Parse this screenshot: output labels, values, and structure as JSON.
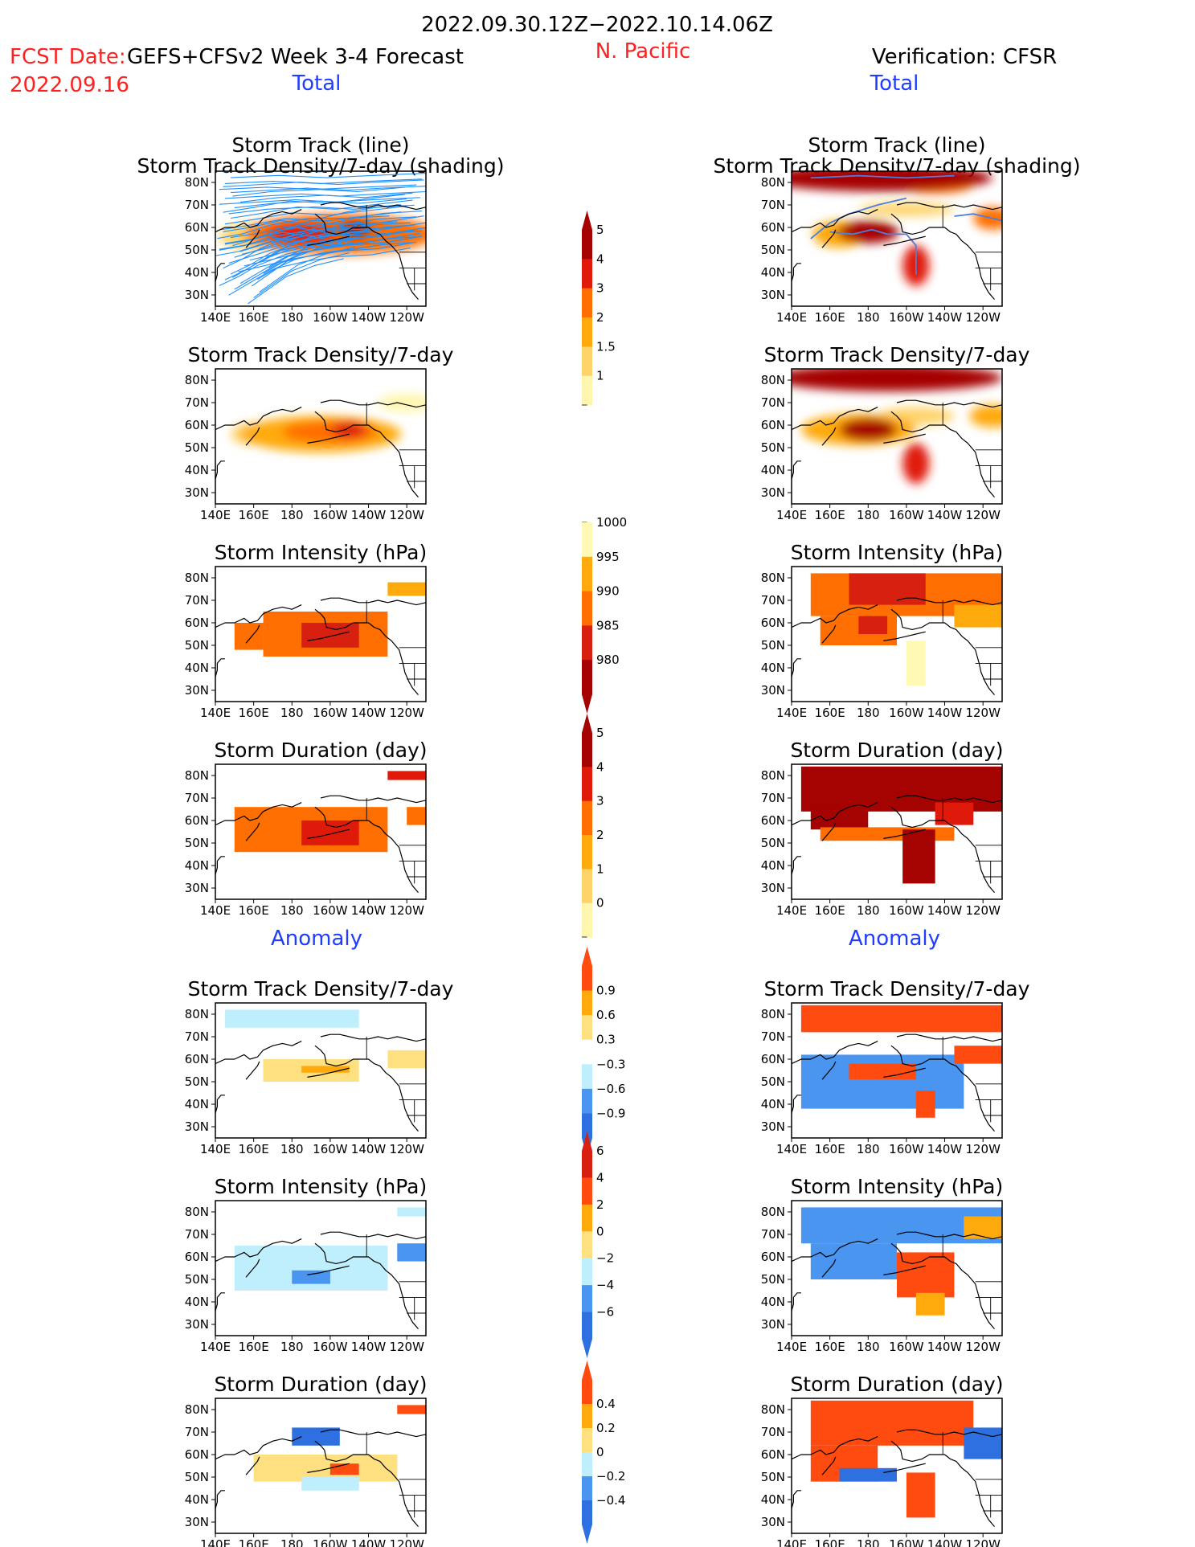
{
  "header": {
    "period": "2022.09.30.12Z−2022.10.14.06Z",
    "fcst_label": "FCST Date:",
    "fcst_model": "GEFS+CFSv2 Week 3-4 Forecast",
    "fcst_date": "2022.09.16",
    "region": "N. Pacific",
    "verification": "Verification: CFSR",
    "total_left": "Total",
    "total_right": "Total",
    "anomaly_left": "Anomaly",
    "anomaly_right": "Anomaly"
  },
  "colors": {
    "text_red": "#ff2020",
    "text_blue": "#1f3cff",
    "track_line": "#1e90ff",
    "track_line_obs": "#4a7fe0"
  },
  "axes": {
    "x_ticks": [
      "140E",
      "160E",
      "180",
      "160W",
      "140W",
      "120W"
    ],
    "y_ticks": [
      "80N",
      "70N",
      "60N",
      "50N",
      "40N",
      "30N"
    ],
    "lon_range": [
      140,
      250
    ],
    "lat_range": [
      25,
      85
    ]
  },
  "colorbars": [
    {
      "id": "density_total",
      "palette": "warm",
      "labels": [
        "5",
        "4",
        "3",
        "2",
        "1.5",
        "1"
      ],
      "triangle_top": true,
      "triangle_bottom": false
    },
    {
      "id": "intensity_total",
      "palette": "warm_rev",
      "labels": [
        "1000",
        "995",
        "990",
        "985",
        "980"
      ],
      "triangle_top": false,
      "triangle_bottom": true
    },
    {
      "id": "duration_total",
      "palette": "warm",
      "labels": [
        "5",
        "4",
        "3",
        "2",
        "1",
        "0"
      ],
      "triangle_top": true,
      "triangle_bottom": false
    },
    {
      "id": "density_anom",
      "palette": "div",
      "labels": [
        "0.9",
        "0.6",
        "0.3",
        "−0.3",
        "−0.6",
        "−0.9"
      ],
      "triangle_top": true,
      "triangle_bottom": true
    },
    {
      "id": "intensity_anom",
      "palette": "div",
      "labels": [
        "6",
        "4",
        "2",
        "0",
        "−2",
        "−4",
        "−6"
      ],
      "triangle_top": true,
      "triangle_bottom": true
    },
    {
      "id": "duration_anom",
      "palette": "div",
      "labels": [
        "0.4",
        "0.2",
        "0",
        "−0.2",
        "−0.4"
      ],
      "triangle_top": true,
      "triangle_bottom": true
    }
  ],
  "chart_data": [
    {
      "type": "heatmap",
      "id": "fcst_track",
      "title": "Storm Track (line)",
      "subtitle": "Storm Track Density/7-day (shading)",
      "units": "storms/7-day",
      "lines": true,
      "blobs": [
        {
          "lon": 205,
          "lat": 57,
          "rx": 50,
          "ry": 9,
          "val": 3
        },
        {
          "lon": 185,
          "lat": 57,
          "rx": 18,
          "ry": 5,
          "val": 4
        },
        {
          "lon": 213,
          "lat": 59,
          "rx": 8,
          "ry": 4,
          "val": 5
        },
        {
          "lon": 160,
          "lat": 56,
          "rx": 18,
          "ry": 6,
          "val": 1.5
        }
      ]
    },
    {
      "type": "heatmap",
      "id": "obs_track",
      "title": "Storm Track (line)",
      "subtitle": "Storm Track Density/7-day (shading)",
      "units": "storms/7-day",
      "lines": true,
      "blobs": [
        {
          "lon": 185,
          "lat": 82,
          "rx": 60,
          "ry": 6,
          "val": 5
        },
        {
          "lon": 215,
          "lat": 79,
          "rx": 20,
          "ry": 4,
          "val": 3
        },
        {
          "lon": 180,
          "lat": 58,
          "rx": 16,
          "ry": 5,
          "val": 5
        },
        {
          "lon": 165,
          "lat": 57,
          "rx": 14,
          "ry": 6,
          "val": 2
        },
        {
          "lon": 205,
          "lat": 43,
          "rx": 7,
          "ry": 9,
          "val": 4
        },
        {
          "lon": 245,
          "lat": 64,
          "rx": 10,
          "ry": 5,
          "val": 3
        },
        {
          "lon": 200,
          "lat": 68,
          "rx": 25,
          "ry": 3,
          "val": 1.5
        }
      ]
    },
    {
      "type": "heatmap",
      "id": "fcst_density",
      "title": "Storm Track Density/7-day",
      "units": "storms/7-day",
      "blobs": [
        {
          "lon": 195,
          "lat": 56,
          "rx": 42,
          "ry": 8,
          "val": 2
        },
        {
          "lon": 200,
          "lat": 57,
          "rx": 25,
          "ry": 5,
          "val": 3
        },
        {
          "lon": 210,
          "lat": 58,
          "rx": 9,
          "ry": 4,
          "val": 4
        },
        {
          "lon": 160,
          "lat": 56,
          "rx": 12,
          "ry": 5,
          "val": 1.5
        },
        {
          "lon": 240,
          "lat": 70,
          "rx": 15,
          "ry": 4,
          "val": 1
        }
      ]
    },
    {
      "type": "heatmap",
      "id": "obs_density",
      "title": "Storm Track Density/7-day",
      "units": "storms/7-day",
      "blobs": [
        {
          "lon": 190,
          "lat": 81,
          "rx": 60,
          "ry": 6,
          "val": 5
        },
        {
          "lon": 180,
          "lat": 58,
          "rx": 15,
          "ry": 5,
          "val": 5
        },
        {
          "lon": 175,
          "lat": 58,
          "rx": 30,
          "ry": 7,
          "val": 2
        },
        {
          "lon": 205,
          "lat": 43,
          "rx": 7,
          "ry": 9,
          "val": 4
        },
        {
          "lon": 245,
          "lat": 64,
          "rx": 12,
          "ry": 5,
          "val": 2
        },
        {
          "lon": 205,
          "lat": 64,
          "rx": 20,
          "ry": 4,
          "val": 1.5
        }
      ]
    },
    {
      "type": "heatmap",
      "id": "fcst_intensity",
      "title": "Storm Intensity (hPa)",
      "units": "hPa",
      "grid": true,
      "boxes": [
        {
          "lon": [
            165,
            230
          ],
          "lat": [
            45,
            65
          ],
          "val": 990
        },
        {
          "lon": [
            185,
            215
          ],
          "lat": [
            49,
            60
          ],
          "val": 985
        },
        {
          "lon": [
            230,
            250
          ],
          "lat": [
            72,
            78
          ],
          "val": 995
        },
        {
          "lon": [
            150,
            165
          ],
          "lat": [
            48,
            60
          ],
          "val": 990
        }
      ]
    },
    {
      "type": "heatmap",
      "id": "obs_intensity",
      "title": "Storm Intensity (hPa)",
      "units": "hPa",
      "grid": true,
      "boxes": [
        {
          "lon": [
            150,
            250
          ],
          "lat": [
            63,
            82
          ],
          "val": 990
        },
        {
          "lon": [
            170,
            210
          ],
          "lat": [
            68,
            82
          ],
          "val": 985
        },
        {
          "lon": [
            155,
            195
          ],
          "lat": [
            50,
            63
          ],
          "val": 990
        },
        {
          "lon": [
            175,
            190
          ],
          "lat": [
            55,
            63
          ],
          "val": 985
        },
        {
          "lon": [
            200,
            210
          ],
          "lat": [
            32,
            52
          ],
          "val": 1000
        },
        {
          "lon": [
            225,
            250
          ],
          "lat": [
            58,
            68
          ],
          "val": 995
        }
      ]
    },
    {
      "type": "heatmap",
      "id": "fcst_duration",
      "title": "Storm Duration (day)",
      "units": "day",
      "grid": true,
      "boxes": [
        {
          "lon": [
            150,
            230
          ],
          "lat": [
            46,
            66
          ],
          "val": 3
        },
        {
          "lon": [
            185,
            215
          ],
          "lat": [
            49,
            60
          ],
          "val": 4
        },
        {
          "lon": [
            230,
            250
          ],
          "lat": [
            78,
            82
          ],
          "val": 4
        },
        {
          "lon": [
            240,
            250
          ],
          "lat": [
            58,
            66
          ],
          "val": 3
        }
      ]
    },
    {
      "type": "heatmap",
      "id": "obs_duration",
      "title": "Storm Duration (day)",
      "units": "day",
      "grid": true,
      "boxes": [
        {
          "lon": [
            145,
            250
          ],
          "lat": [
            64,
            84
          ],
          "val": 5
        },
        {
          "lon": [
            150,
            180
          ],
          "lat": [
            56,
            66
          ],
          "val": 5
        },
        {
          "lon": [
            155,
            225
          ],
          "lat": [
            51,
            57
          ],
          "val": 3
        },
        {
          "lon": [
            198,
            215
          ],
          "lat": [
            32,
            56
          ],
          "val": 5
        },
        {
          "lon": [
            215,
            235
          ],
          "lat": [
            58,
            68
          ],
          "val": 4
        }
      ]
    },
    {
      "type": "heatmap",
      "id": "fcst_density_anom",
      "title": "Storm Track Density/7-day",
      "units": "storms/7-day",
      "grid": true,
      "boxes": [
        {
          "lon": [
            145,
            215
          ],
          "lat": [
            74,
            82
          ],
          "val": -0.3
        },
        {
          "lon": [
            165,
            215
          ],
          "lat": [
            50,
            60
          ],
          "val": 0.3
        },
        {
          "lon": [
            185,
            210
          ],
          "lat": [
            54,
            57
          ],
          "val": 0.6
        },
        {
          "lon": [
            230,
            250
          ],
          "lat": [
            56,
            64
          ],
          "val": 0.3
        }
      ]
    },
    {
      "type": "heatmap",
      "id": "obs_density_anom",
      "title": "Storm Track Density/7-day",
      "units": "storms/7-day",
      "grid": true,
      "boxes": [
        {
          "lon": [
            145,
            250
          ],
          "lat": [
            72,
            84
          ],
          "val": 0.9
        },
        {
          "lon": [
            145,
            230
          ],
          "lat": [
            38,
            62
          ],
          "val": -0.6
        },
        {
          "lon": [
            170,
            205
          ],
          "lat": [
            51,
            58
          ],
          "val": 0.9
        },
        {
          "lon": [
            205,
            215
          ],
          "lat": [
            34,
            46
          ],
          "val": 0.9
        },
        {
          "lon": [
            225,
            250
          ],
          "lat": [
            58,
            66
          ],
          "val": 0.9
        }
      ]
    },
    {
      "type": "heatmap",
      "id": "fcst_intensity_anom",
      "title": "Storm Intensity (hPa)",
      "units": "hPa",
      "grid": true,
      "boxes": [
        {
          "lon": [
            150,
            230
          ],
          "lat": [
            45,
            65
          ],
          "val": -2
        },
        {
          "lon": [
            180,
            200
          ],
          "lat": [
            48,
            54
          ],
          "val": -4
        },
        {
          "lon": [
            235,
            250
          ],
          "lat": [
            58,
            66
          ],
          "val": -4
        },
        {
          "lon": [
            235,
            250
          ],
          "lat": [
            78,
            82
          ],
          "val": -2
        }
      ]
    },
    {
      "type": "heatmap",
      "id": "obs_intensity_anom",
      "title": "Storm Intensity (hPa)",
      "units": "hPa",
      "grid": true,
      "boxes": [
        {
          "lon": [
            145,
            250
          ],
          "lat": [
            66,
            82
          ],
          "val": -4
        },
        {
          "lon": [
            150,
            195
          ],
          "lat": [
            50,
            66
          ],
          "val": -4
        },
        {
          "lon": [
            195,
            225
          ],
          "lat": [
            42,
            62
          ],
          "val": 6
        },
        {
          "lon": [
            205,
            220
          ],
          "lat": [
            34,
            44
          ],
          "val": 4
        },
        {
          "lon": [
            230,
            250
          ],
          "lat": [
            68,
            78
          ],
          "val": 4
        }
      ]
    },
    {
      "type": "heatmap",
      "id": "fcst_duration_anom",
      "title": "Storm Duration (day)",
      "units": "day",
      "grid": true,
      "boxes": [
        {
          "lon": [
            160,
            235
          ],
          "lat": [
            48,
            60
          ],
          "val": 0.2
        },
        {
          "lon": [
            180,
            205
          ],
          "lat": [
            64,
            72
          ],
          "val": -0.4
        },
        {
          "lon": [
            185,
            215
          ],
          "lat": [
            44,
            50
          ],
          "val": -0.2
        },
        {
          "lon": [
            200,
            215
          ],
          "lat": [
            51,
            56
          ],
          "val": 0.4
        },
        {
          "lon": [
            235,
            250
          ],
          "lat": [
            78,
            82
          ],
          "val": 0.4
        }
      ]
    },
    {
      "type": "heatmap",
      "id": "obs_duration_anom",
      "title": "Storm Duration (day)",
      "units": "day",
      "grid": true,
      "boxes": [
        {
          "lon": [
            150,
            235
          ],
          "lat": [
            64,
            84
          ],
          "val": 0.4
        },
        {
          "lon": [
            150,
            185
          ],
          "lat": [
            48,
            64
          ],
          "val": 0.4
        },
        {
          "lon": [
            165,
            195
          ],
          "lat": [
            48,
            54
          ],
          "val": -0.4
        },
        {
          "lon": [
            200,
            215
          ],
          "lat": [
            32,
            52
          ],
          "val": 0.4
        },
        {
          "lon": [
            230,
            250
          ],
          "lat": [
            58,
            72
          ],
          "val": -0.4
        }
      ]
    }
  ]
}
